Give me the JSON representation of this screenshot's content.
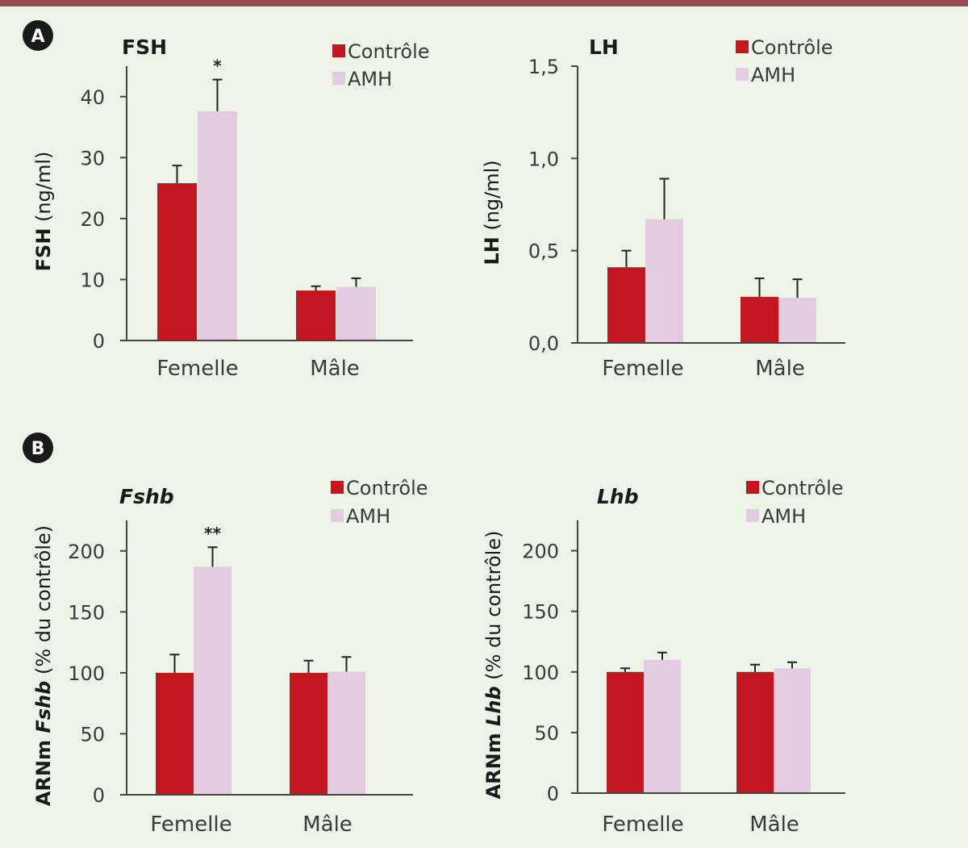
{
  "colors": {
    "background": "#eef3e7",
    "top_bar": "#9a4a55",
    "control": "#c4161e",
    "amh": "#e3cce2",
    "axis": "#444444",
    "badge": "#1a1a1a"
  },
  "panels": [
    {
      "letter": "A"
    },
    {
      "letter": "B"
    }
  ],
  "chart_data": [
    {
      "type": "bar",
      "title": "FSH",
      "title_italic": false,
      "ylabel_bold": "FSH",
      "ylabel_rest": " (ng/ml)",
      "categories": [
        "Femelle",
        "Mâle"
      ],
      "series": [
        {
          "name": "Contrôle",
          "values": [
            25.8,
            8.2
          ],
          "errors": [
            2.9,
            0.7
          ]
        },
        {
          "name": "AMH",
          "values": [
            37.6,
            8.8
          ],
          "errors": [
            5.2,
            1.4
          ]
        }
      ],
      "significance": [
        "*",
        ""
      ],
      "ylim": [
        0,
        45
      ],
      "yticks": [
        0,
        10,
        20,
        30,
        40
      ],
      "ytick_labels": [
        "0",
        "10",
        "20",
        "30",
        "40"
      ],
      "legend": [
        "Contrôle",
        "AMH"
      ],
      "legend_position": "top-right"
    },
    {
      "type": "bar",
      "title": "LH",
      "title_italic": false,
      "ylabel_bold": "LH",
      "ylabel_rest": " (ng/ml)",
      "categories": [
        "Femelle",
        "Mâle"
      ],
      "series": [
        {
          "name": "Contrôle",
          "values": [
            0.41,
            0.25
          ],
          "errors": [
            0.09,
            0.1
          ]
        },
        {
          "name": "AMH",
          "values": [
            0.67,
            0.245
          ],
          "errors": [
            0.22,
            0.1
          ]
        }
      ],
      "significance": [
        "",
        ""
      ],
      "ylim": [
        0,
        1.5
      ],
      "yticks": [
        0,
        0.5,
        1.0,
        1.5
      ],
      "ytick_labels": [
        "0,0",
        "0,5",
        "1,0",
        "1,5"
      ],
      "legend": [
        "Contrôle",
        "AMH"
      ],
      "legend_position": "top-right"
    },
    {
      "type": "bar",
      "title": "Fshb",
      "title_italic": true,
      "ylabel_bold": "ARNm ",
      "ylabel_bold_italic": "Fshb",
      "ylabel_rest": " (% du contrôle)",
      "categories": [
        "Femelle",
        "Mâle"
      ],
      "series": [
        {
          "name": "Contrôle",
          "values": [
            100,
            100
          ],
          "errors": [
            15,
            10
          ]
        },
        {
          "name": "AMH",
          "values": [
            187,
            101
          ],
          "errors": [
            16,
            12
          ]
        }
      ],
      "significance": [
        "**",
        ""
      ],
      "ylim": [
        0,
        225
      ],
      "yticks": [
        0,
        50,
        100,
        150,
        200
      ],
      "ytick_labels": [
        "0",
        "50",
        "100",
        "150",
        "200"
      ],
      "legend": [
        "Contrôle",
        "AMH"
      ],
      "legend_position": "top-right"
    },
    {
      "type": "bar",
      "title": "Lhb",
      "title_italic": true,
      "ylabel_bold": "ARNm ",
      "ylabel_bold_italic": "Lhb",
      "ylabel_rest": " (% du contrôle)",
      "categories": [
        "Femelle",
        "Mâle"
      ],
      "series": [
        {
          "name": "Contrôle",
          "values": [
            100,
            100
          ],
          "errors": [
            3,
            6
          ]
        },
        {
          "name": "AMH",
          "values": [
            110,
            103
          ],
          "errors": [
            6,
            5
          ]
        }
      ],
      "significance": [
        "",
        ""
      ],
      "ylim": [
        0,
        225
      ],
      "yticks": [
        0,
        50,
        100,
        150,
        200
      ],
      "ytick_labels": [
        "0",
        "50",
        "100",
        "150",
        "200"
      ],
      "legend": [
        "Contrôle",
        "AMH"
      ],
      "legend_position": "top-right"
    }
  ]
}
